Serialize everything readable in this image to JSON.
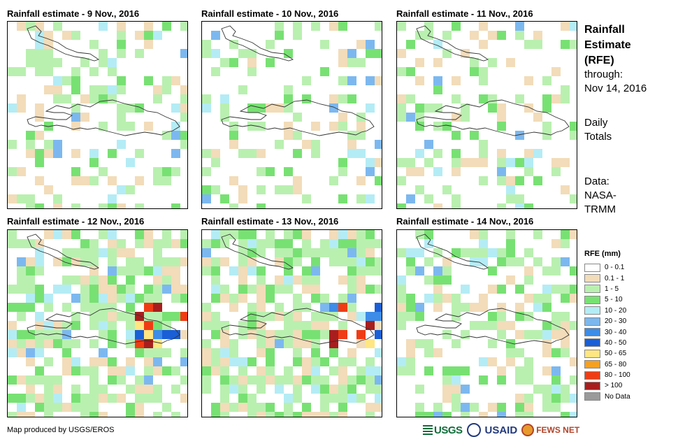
{
  "panels": [
    {
      "title": "Rainfall estimate - 9 Nov., 2016"
    },
    {
      "title": "Rainfall estimate - 10 Nov., 2016"
    },
    {
      "title": "Rainfall estimate - 11 Nov., 2016"
    },
    {
      "title": "Rainfall estimate - 12 Nov., 2016"
    },
    {
      "title": "Rainfall estimate - 13 Nov., 2016"
    },
    {
      "title": "Rainfall estimate - 14 Nov., 2016"
    }
  ],
  "side": {
    "title_line1": "Rainfall",
    "title_line2": "Estimate",
    "title_line3": "(RFE)",
    "through_label": "through:",
    "through_date": "Nov 14, 2016",
    "totals_line1": "Daily",
    "totals_line2": "Totals",
    "data_label": "Data:",
    "data_source_line1": "NASA-",
    "data_source_line2": "TRMM"
  },
  "legend": {
    "title": "RFE (mm)",
    "items": [
      {
        "label": "0 - 0.1",
        "color": "#ffffff"
      },
      {
        "label": "0.1 - 1",
        "color": "#f2dcb9"
      },
      {
        "label": "1 - 5",
        "color": "#b9f0b0"
      },
      {
        "label": "5 - 10",
        "color": "#78e173"
      },
      {
        "label": "10 - 20",
        "color": "#b4ecf5"
      },
      {
        "label": "20 - 30",
        "color": "#7cb8ef"
      },
      {
        "label": "30 - 40",
        "color": "#3c8ce8"
      },
      {
        "label": "40 - 50",
        "color": "#1a5fd6"
      },
      {
        "label": "50 - 65",
        "color": "#ffe682"
      },
      {
        "label": "65 - 80",
        "color": "#f5a020"
      },
      {
        "label": "80 - 100",
        "color": "#f03c14"
      },
      {
        "label": "> 100",
        "color": "#a81e1e"
      },
      {
        "label": "No Data",
        "color": "#9a9a9a"
      }
    ]
  },
  "credit": "Map produced by USGS/EROS",
  "logos": {
    "usgs": "USGS",
    "usaid": "USAID",
    "fewsnet": "FEWS NET"
  }
}
